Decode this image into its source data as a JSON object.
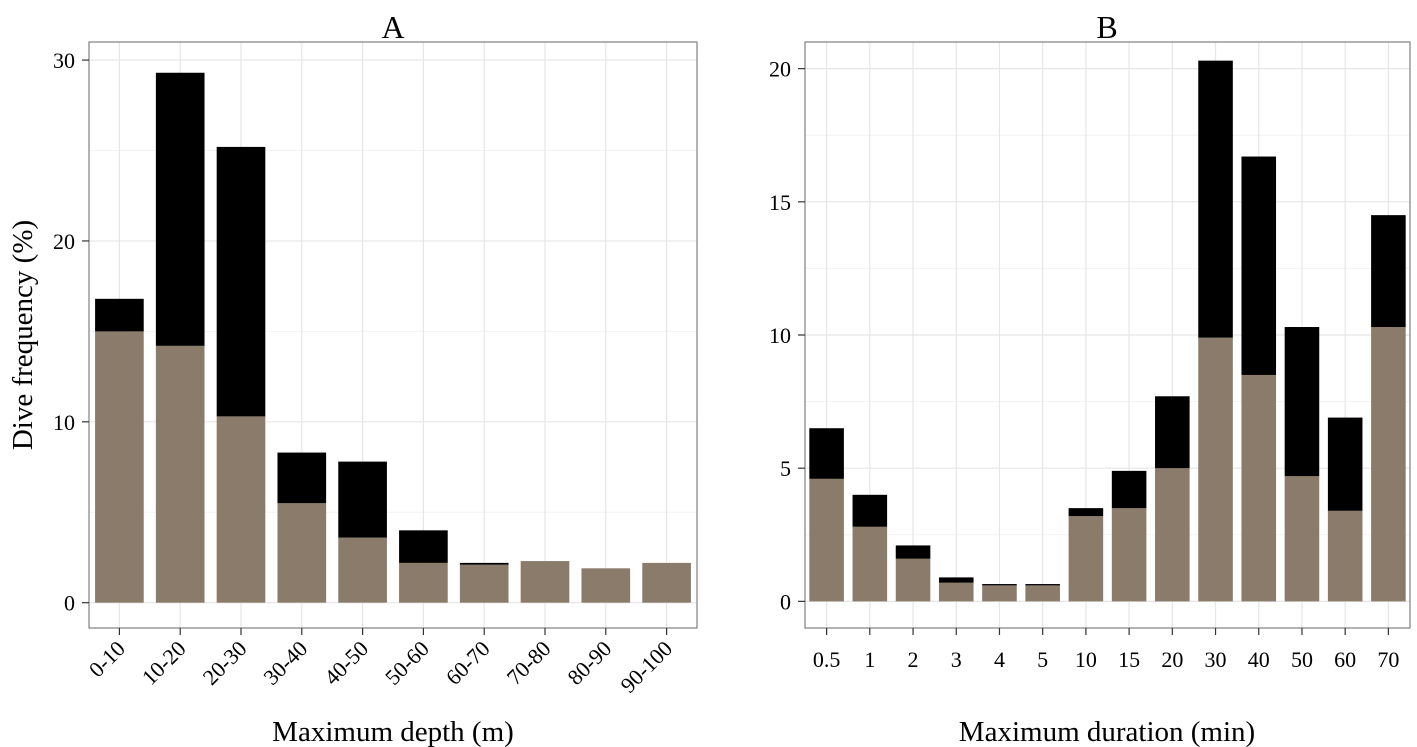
{
  "colors": {
    "bottom_fill": "#8a7b6b",
    "top_fill": "#000000",
    "panel_bg": "#ffffff",
    "grid_major": "#e6e6e6",
    "grid_minor": "#f3f3f3",
    "panel_border": "#808080"
  },
  "shared": {
    "ylabel": "Dive frequency (%)"
  },
  "chart_data": [
    {
      "type": "bar",
      "stacked": true,
      "title": "A",
      "xlabel": "Maximum depth (m)",
      "ylabel": "Dive frequency (%)",
      "categories": [
        "0-10",
        "10-20",
        "20-30",
        "30-40",
        "40-50",
        "50-60",
        "60-70",
        "70-80",
        "80-90",
        "90-100"
      ],
      "xtick_rotation": -45,
      "series": [
        {
          "role": "bottom",
          "values": [
            15.0,
            14.2,
            10.3,
            5.5,
            3.6,
            2.2,
            2.1,
            2.3,
            1.9,
            2.2
          ]
        },
        {
          "role": "top",
          "values": [
            1.8,
            15.1,
            14.9,
            2.8,
            4.2,
            1.8,
            0.1,
            0.0,
            0.0,
            0.0
          ]
        }
      ],
      "ylim": [
        -1.4,
        31.0
      ],
      "yticks": [
        0,
        10,
        20,
        30
      ],
      "grid": true
    },
    {
      "type": "bar",
      "stacked": true,
      "title": "B",
      "xlabel": "Maximum duration (min)",
      "ylabel": "",
      "categories": [
        "0.5",
        "1",
        "2",
        "3",
        "4",
        "5",
        "10",
        "15",
        "20",
        "30",
        "40",
        "50",
        "60",
        "70"
      ],
      "xtick_rotation": 0,
      "series": [
        {
          "role": "bottom",
          "values": [
            4.6,
            2.8,
            1.6,
            0.7,
            0.6,
            0.6,
            3.2,
            3.5,
            5.0,
            9.9,
            8.5,
            4.7,
            3.4,
            10.3
          ]
        },
        {
          "role": "top",
          "values": [
            1.9,
            1.2,
            0.5,
            0.2,
            0.05,
            0.05,
            0.3,
            1.4,
            2.7,
            10.4,
            8.2,
            5.6,
            3.5,
            4.2
          ]
        }
      ],
      "ylim": [
        -1.0,
        21.0
      ],
      "yticks": [
        0,
        5,
        10,
        15,
        20
      ],
      "grid": true
    }
  ]
}
